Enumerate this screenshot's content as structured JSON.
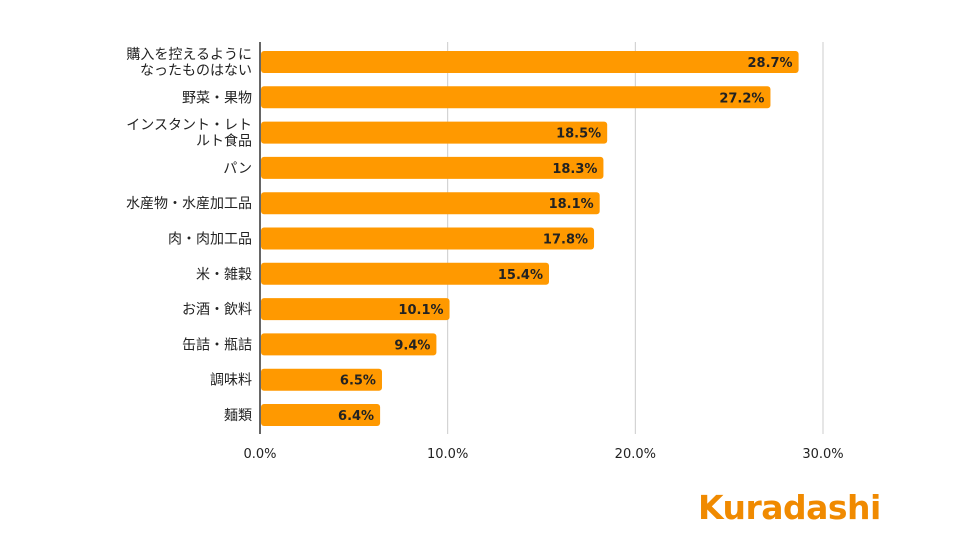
{
  "brand": {
    "logo_text": "Kuradashi",
    "logo_color": "#f08a00"
  },
  "colors": {
    "bar": "#ff9900",
    "grid": "#cccccc",
    "axis": "#333333",
    "text": "#222222"
  },
  "chart_data": {
    "type": "bar",
    "orientation": "horizontal",
    "categories": [
      [
        "購入を控えるように",
        "なったものはない"
      ],
      [
        "野菜・果物"
      ],
      [
        "インスタント・レト",
        "ルト食品"
      ],
      [
        "パン"
      ],
      [
        "水産物・水産加工品"
      ],
      [
        "肉・肉加工品"
      ],
      [
        "米・雑穀"
      ],
      [
        "お酒・飲料"
      ],
      [
        "缶詰・瓶詰"
      ],
      [
        "調味料"
      ],
      [
        "麺類"
      ]
    ],
    "values": [
      28.7,
      27.2,
      18.5,
      18.3,
      18.1,
      17.8,
      15.4,
      10.1,
      9.4,
      6.5,
      6.4
    ],
    "value_labels": [
      "28.7%",
      "27.2%",
      "18.5%",
      "18.3%",
      "18.1%",
      "17.8%",
      "15.4%",
      "10.1%",
      "9.4%",
      "6.5%",
      "6.4%"
    ],
    "xlim": [
      0,
      30
    ],
    "xticks": [
      0,
      10,
      20,
      30
    ],
    "xtick_labels": [
      "0.0%",
      "10.0%",
      "20.0%",
      "30.0%"
    ],
    "grid": true,
    "legend": "none"
  }
}
